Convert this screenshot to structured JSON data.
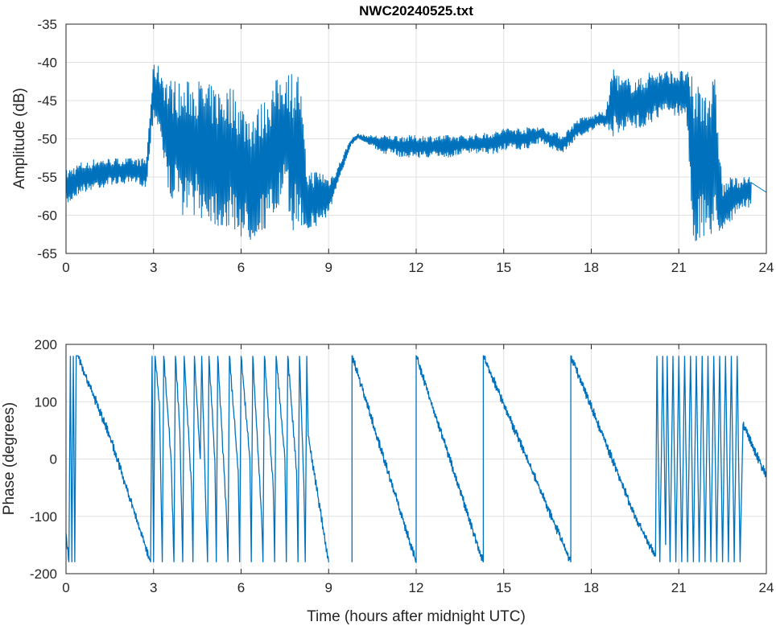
{
  "chart_data": [
    {
      "type": "line",
      "title": "NWC20240525.txt",
      "xlabel": "",
      "ylabel": "Amplitude (dB)",
      "xlim": [
        0,
        24
      ],
      "ylim": [
        -65,
        -35
      ],
      "xticks": [
        "0",
        "3",
        "6",
        "9",
        "12",
        "15",
        "18",
        "21",
        "24"
      ],
      "yticks": [
        "-35",
        "-40",
        "-45",
        "-50",
        "-55",
        "-60",
        "-65"
      ],
      "grid": true,
      "color": "#0072BD",
      "x_step_hours": 0.25,
      "envelope_min": [
        -59,
        -58,
        -57,
        -57,
        -56.5,
        -56.5,
        -56,
        -56,
        -56,
        -56,
        -56,
        -56.5,
        -47,
        -50,
        -58,
        -58,
        -60,
        -60,
        -60,
        -61,
        -61,
        -62,
        -62,
        -62,
        -63,
        -64,
        -63,
        -62,
        -62,
        -60,
        -58,
        -62,
        -62,
        -62,
        -62,
        -61,
        -60,
        -57,
        -54,
        -51,
        -50,
        -50.5,
        -51,
        -52,
        -52,
        -52,
        -52.5,
        -52.5,
        -52.5,
        -52.5,
        -52.5,
        -52.5,
        -52.5,
        -52.5,
        -52,
        -52,
        -52,
        -52,
        -52,
        -52,
        -51.5,
        -51.5,
        -51.5,
        -51.5,
        -51,
        -50.5,
        -51,
        -51.5,
        -52,
        -51,
        -50,
        -49.5,
        -49,
        -48.5,
        -48.5,
        -50,
        -49,
        -49,
        -49,
        -48.5,
        -48,
        -47.5,
        -47,
        -47,
        -47,
        -47,
        -64,
        -64,
        -63,
        -63,
        -62,
        -61,
        -60,
        -59,
        -59
      ],
      "envelope_max": [
        -54,
        -53.5,
        -53,
        -53,
        -52.5,
        -52.5,
        -52.5,
        -52.5,
        -52.5,
        -52.5,
        -52.5,
        -52.5,
        -40,
        -40.5,
        -42,
        -42,
        -43,
        -42,
        -42,
        -42.5,
        -43,
        -43,
        -43,
        -43,
        -45,
        -46,
        -46,
        -45,
        -43,
        -42,
        -40.5,
        -41,
        -41,
        -54,
        -54,
        -54,
        -55,
        -54,
        -52,
        -50,
        -49.3,
        -49.5,
        -49.5,
        -49.5,
        -49.5,
        -49.5,
        -49.5,
        -49.5,
        -49.5,
        -49.5,
        -49.5,
        -49.5,
        -49.5,
        -49.5,
        -49.5,
        -49.5,
        -49.3,
        -49.3,
        -49,
        -49,
        -48.5,
        -48.5,
        -48.5,
        -48.5,
        -48.3,
        -48.3,
        -48.8,
        -49,
        -49.5,
        -48.5,
        -47.5,
        -47,
        -47,
        -46.5,
        -46.5,
        -40,
        -42,
        -42,
        -42,
        -42,
        -41,
        -41,
        -41,
        -41,
        -41,
        -41,
        -42,
        -42,
        -42,
        -42,
        -56,
        -55,
        -55,
        -55,
        -55
      ]
    },
    {
      "type": "line",
      "title": "",
      "xlabel": "Time (hours after midnight UTC)",
      "ylabel": "Phase (degrees)",
      "xlim": [
        0,
        24
      ],
      "ylim": [
        -200,
        200
      ],
      "xticks": [
        "0",
        "3",
        "6",
        "9",
        "12",
        "15",
        "18",
        "21",
        "24"
      ],
      "yticks": [
        "200",
        "100",
        "0",
        "-100",
        "-200"
      ],
      "grid": true,
      "color": "#0072BD",
      "points": [
        [
          0,
          -130
        ],
        [
          0.1,
          -180
        ],
        [
          0.15,
          180
        ],
        [
          0.2,
          -180
        ],
        [
          0.25,
          180
        ],
        [
          0.3,
          -180
        ],
        [
          0.35,
          180
        ],
        [
          0.4,
          180
        ],
        [
          1.5,
          40
        ],
        [
          2.9,
          -180
        ],
        [
          2.95,
          180
        ],
        [
          3.0,
          -180
        ],
        [
          3.05,
          180
        ],
        [
          3.2,
          100
        ],
        [
          3.3,
          -180
        ],
        [
          3.35,
          180
        ],
        [
          3.6,
          0
        ],
        [
          3.7,
          -180
        ],
        [
          3.75,
          180
        ],
        [
          3.9,
          50
        ],
        [
          4.0,
          -180
        ],
        [
          4.05,
          180
        ],
        [
          4.3,
          -50
        ],
        [
          4.35,
          -180
        ],
        [
          4.4,
          180
        ],
        [
          4.6,
          0
        ],
        [
          4.65,
          180
        ],
        [
          4.8,
          -100
        ],
        [
          4.85,
          -180
        ],
        [
          4.9,
          180
        ],
        [
          5.1,
          0
        ],
        [
          5.15,
          -180
        ],
        [
          5.2,
          180
        ],
        [
          5.5,
          -100
        ],
        [
          5.55,
          -180
        ],
        [
          5.6,
          180
        ],
        [
          5.9,
          -20
        ],
        [
          5.95,
          -180
        ],
        [
          6.0,
          180
        ],
        [
          6.3,
          0
        ],
        [
          6.35,
          -180
        ],
        [
          6.4,
          180
        ],
        [
          6.7,
          -100
        ],
        [
          6.75,
          -180
        ],
        [
          6.8,
          180
        ],
        [
          7.1,
          -50
        ],
        [
          7.15,
          -180
        ],
        [
          7.2,
          180
        ],
        [
          7.5,
          0
        ],
        [
          7.55,
          -180
        ],
        [
          7.6,
          180
        ],
        [
          7.9,
          -20
        ],
        [
          7.95,
          -180
        ],
        [
          8.0,
          180
        ],
        [
          8.15,
          -40
        ],
        [
          8.2,
          -180
        ],
        [
          8.25,
          180
        ],
        [
          8.3,
          40
        ],
        [
          9.0,
          -180
        ],
        null,
        [
          9.8,
          -180
        ],
        [
          9.8,
          180
        ],
        [
          12.0,
          -180
        ],
        [
          12.0,
          180
        ],
        [
          14.3,
          -180
        ],
        [
          14.3,
          180
        ],
        [
          17.3,
          -180
        ],
        [
          17.3,
          180
        ],
        [
          19.5,
          -100
        ],
        [
          20.2,
          -170
        ],
        [
          20.25,
          180
        ],
        [
          20.35,
          -180
        ],
        [
          20.45,
          180
        ],
        [
          20.55,
          -150
        ],
        [
          20.6,
          180
        ],
        [
          20.7,
          -180
        ],
        [
          20.8,
          180
        ],
        [
          20.9,
          -180
        ],
        [
          21.0,
          180
        ],
        [
          21.1,
          -180
        ],
        [
          21.2,
          180
        ],
        [
          21.3,
          -180
        ],
        [
          21.4,
          180
        ],
        [
          21.5,
          -180
        ],
        [
          21.6,
          180
        ],
        [
          21.7,
          -180
        ],
        [
          21.8,
          180
        ],
        [
          21.9,
          -180
        ],
        [
          22.0,
          180
        ],
        [
          22.1,
          -180
        ],
        [
          22.2,
          180
        ],
        [
          22.3,
          -180
        ],
        [
          22.4,
          180
        ],
        [
          22.5,
          -180
        ],
        [
          22.6,
          180
        ],
        [
          22.7,
          -180
        ],
        [
          22.8,
          180
        ],
        [
          22.9,
          -180
        ],
        [
          23.0,
          180
        ],
        [
          23.1,
          -180
        ],
        [
          23.2,
          60
        ],
        [
          24,
          -30
        ]
      ]
    }
  ]
}
